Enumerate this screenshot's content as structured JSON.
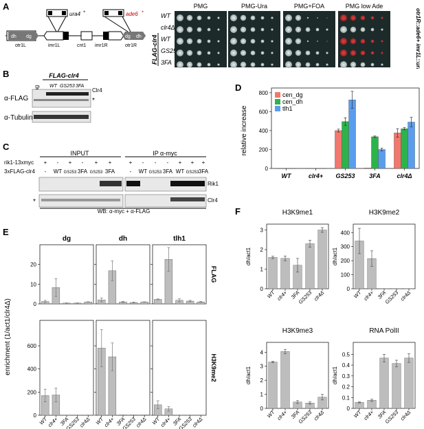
{
  "panel_labels": {
    "a": "A",
    "b": "B",
    "c": "C",
    "d": "D",
    "e": "E",
    "f": "F"
  },
  "panelA": {
    "map": {
      "ura4": "ura4",
      "ura4_sup": "+",
      "ade6": "ade6",
      "ade6_sup": "+",
      "regions": [
        "otr1L",
        "imr1L",
        "cnt1",
        "imr1R",
        "otr1R"
      ],
      "dh": "dh",
      "dg": "dg"
    },
    "plates": [
      "PMG",
      "PMG-Ura",
      "PMG+FOA",
      "PMG low Ade"
    ],
    "strains": [
      "WT",
      "clr4Δ",
      "WT",
      "GS253",
      "3FA"
    ],
    "side_label": "FLAG-clr4",
    "right_label": "otr1R::ade6+ imr1L::ura4+"
  },
  "panelB": {
    "header": "FLAG-clr4",
    "no_tag": "no tag",
    "lanes": [
      "WT",
      "GS253",
      "3FA"
    ],
    "rows": [
      "α-FLAG",
      "α-Tubulin"
    ],
    "band": "Clr4",
    "star": "*"
  },
  "panelC": {
    "input_title": "INPUT",
    "ip_title": "IP α-myc",
    "row1_label": "rik1-13xmyc",
    "row2_label": "3xFLAG-clr4",
    "input_row1": [
      "+",
      "-",
      "+",
      "-",
      "+",
      "+"
    ],
    "input_row2": [
      "-",
      "WT",
      "GS253",
      "3FA",
      "GS253",
      "3FA"
    ],
    "ip_row1": [
      "+",
      "-",
      "-",
      "-",
      "+",
      "+",
      "+"
    ],
    "ip_row2": [
      "-",
      "WT",
      "GS253",
      "3FA",
      "WT",
      "GS253",
      "3FA"
    ],
    "bands": [
      "Rik1",
      "Clr4"
    ],
    "star": "*",
    "footer": "WB: α-myc + α-FLAG"
  },
  "chart_data": [
    {
      "panel": "D",
      "type": "bar",
      "categories": [
        "WT",
        "clr4+",
        "GS253",
        "3FA",
        "clr4Δ"
      ],
      "ylabel": "relative increase",
      "ylim": [
        0,
        850
      ],
      "yticks": [
        0,
        200,
        400,
        600,
        800
      ],
      "legend_position": "top-left",
      "series": [
        {
          "name": "cen_dg",
          "color": "#f2776d",
          "values": [
            0,
            0,
            400,
            5,
            375
          ],
          "errors": [
            0,
            0,
            15,
            0,
            45
          ]
        },
        {
          "name": "cen_dh",
          "color": "#2db34a",
          "values": [
            0,
            0,
            495,
            335,
            420
          ],
          "errors": [
            0,
            0,
            40,
            8,
            12
          ]
        },
        {
          "name": "tlh1",
          "color": "#5b9ded",
          "values": [
            0,
            0,
            725,
            200,
            490
          ],
          "errors": [
            0,
            0,
            90,
            15,
            50
          ]
        }
      ]
    },
    {
      "panel": "E",
      "type": "bar",
      "categories": [
        "WT",
        "clr4+",
        "3FA",
        "GS253",
        "clr4Δ"
      ],
      "columns": [
        "dg",
        "dh",
        "tlh1"
      ],
      "rows": [
        {
          "name": "FLAG",
          "ylim": [
            0,
            30
          ],
          "yticks": [
            0,
            10,
            20
          ],
          "values": {
            "dg": [
              1.2,
              8.3,
              0.4,
              0.4,
              1.0
            ],
            "dh": [
              2.0,
              16.8,
              1.0,
              0.7,
              1.0
            ],
            "tlh1": [
              2.3,
              22.6,
              1.8,
              1.4,
              1.0
            ]
          },
          "errors": {
            "dg": [
              0.6,
              4.5,
              0.1,
              0.1,
              0.1
            ],
            "dh": [
              1.0,
              5,
              0.3,
              0.2,
              0.1
            ],
            "tlh1": [
              0.2,
              6,
              0.8,
              0.4,
              0.2
            ]
          }
        },
        {
          "name": "H3K9me2",
          "ylim": [
            0,
            820
          ],
          "yticks": [
            0,
            200,
            400,
            600
          ],
          "values": {
            "dg": [
              170,
              175,
              2,
              2,
              2
            ],
            "dh": [
              580,
              505,
              3,
              3,
              3
            ],
            "tlh1": [
              90,
              55,
              2,
              2,
              2
            ]
          },
          "errors": {
            "dg": [
              55,
              60,
              0,
              0,
              0
            ],
            "dh": [
              160,
              120,
              0,
              0,
              0
            ],
            "tlh1": [
              35,
              20,
              0,
              0,
              0
            ]
          }
        }
      ],
      "ylabel": "enrichment (1/act1/clr4Δ)"
    },
    {
      "panel": "F",
      "type": "bar",
      "categories": [
        "WT",
        "clr4+",
        "3FA",
        "GS253",
        "clr4Δ"
      ],
      "ylabel": "dh/act1",
      "subplots": [
        {
          "title": "H3K9me1",
          "ylim": [
            0,
            3.3
          ],
          "yticks": [
            0,
            1,
            2,
            3
          ],
          "values": [
            1.6,
            1.55,
            1.2,
            2.3,
            3.0
          ],
          "errors": [
            0.06,
            0.12,
            0.35,
            0.18,
            0.12
          ]
        },
        {
          "title": "H3K9me2",
          "ylim": [
            0,
            460
          ],
          "yticks": [
            0,
            100,
            200,
            300,
            400
          ],
          "values": [
            340,
            215,
            1,
            1,
            1
          ],
          "errors": [
            90,
            55,
            0,
            0,
            0
          ]
        },
        {
          "title": "H3K9me3",
          "ylim": [
            0,
            4.7
          ],
          "yticks": [
            0,
            1,
            2,
            3,
            4
          ],
          "values": [
            3.3,
            4.05,
            0.45,
            0.38,
            0.8
          ],
          "errors": [
            0.05,
            0.15,
            0.1,
            0.08,
            0.2
          ]
        },
        {
          "title": "RNA PolII",
          "ylim": [
            0,
            0.61
          ],
          "yticks": [
            0,
            0.1,
            0.2,
            0.3,
            0.4,
            0.5
          ],
          "values": [
            0.055,
            0.075,
            0.465,
            0.415,
            0.465
          ],
          "errors": [
            0.005,
            0.01,
            0.035,
            0.03,
            0.04
          ]
        }
      ]
    }
  ]
}
